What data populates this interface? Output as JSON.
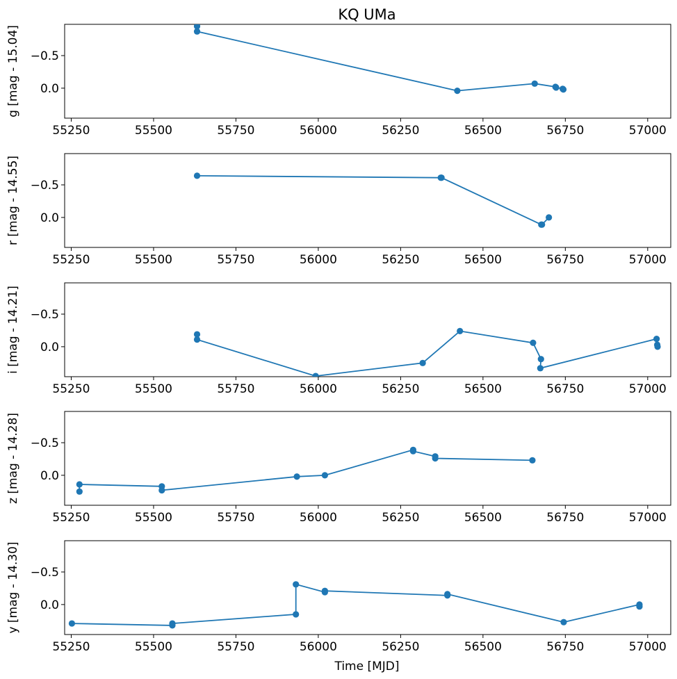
{
  "chart_data": {
    "type": "line",
    "title": "KQ UMa",
    "xlabel": "Time [MJD]",
    "xlim": [
      55230,
      57070
    ],
    "xticks": [
      55250,
      55500,
      55750,
      56000,
      56250,
      56500,
      56750,
      57000
    ],
    "xtick_labels": [
      "55250",
      "55500",
      "55750",
      "56000",
      "56250",
      "56500",
      "56750",
      "57000"
    ],
    "yticks": [
      -0.5,
      0.0
    ],
    "ytick_labels": [
      "−0.5",
      "0.0"
    ],
    "ylim_inverted": [
      0.46,
      -0.98
    ],
    "series_color": "#1f77b4",
    "panels": [
      {
        "name": "g",
        "ylabel": "g [mag - 15.04]",
        "x": [
          55632,
          55632,
          56422,
          56657,
          56720,
          56722,
          56742,
          56744
        ],
        "y": [
          -0.95,
          -0.87,
          0.04,
          -0.07,
          -0.02,
          -0.01,
          0.01,
          0.02
        ]
      },
      {
        "name": "r",
        "ylabel": "r [mag - 14.55]",
        "x": [
          55632,
          56372,
          56374,
          56677,
          56679,
          56700
        ],
        "y": [
          -0.64,
          -0.61,
          -0.61,
          0.11,
          0.11,
          0.0
        ]
      },
      {
        "name": "i",
        "ylabel": "i [mag - 14.21]",
        "x": [
          55632,
          55632,
          55992,
          56317,
          56430,
          56652,
          56676,
          56674,
          57027,
          57029,
          57030
        ],
        "y": [
          -0.19,
          -0.11,
          0.45,
          0.25,
          -0.24,
          -0.06,
          0.19,
          0.33,
          -0.12,
          -0.03,
          0.0
        ],
        "note": "point at MJD 55992 lies on lower axis edge"
      },
      {
        "name": "z",
        "ylabel": "z [mag - 14.28]",
        "x": [
          55275,
          55275,
          55525,
          55525,
          55935,
          56020,
          56288,
          56288,
          56355,
          56355,
          56650
        ],
        "y": [
          0.25,
          0.14,
          0.17,
          0.23,
          0.02,
          0.0,
          -0.39,
          -0.37,
          -0.29,
          -0.26,
          -0.23
        ]
      },
      {
        "name": "y",
        "ylabel": "y [mag - 14.30]",
        "x": [
          55252,
          55557,
          55557,
          55932,
          55932,
          56020,
          56020,
          56392,
          56392,
          56745,
          56975,
          56975
        ],
        "y": [
          0.29,
          0.32,
          0.29,
          0.15,
          -0.31,
          -0.19,
          -0.21,
          -0.14,
          -0.16,
          0.27,
          0.0,
          0.03
        ]
      }
    ]
  }
}
